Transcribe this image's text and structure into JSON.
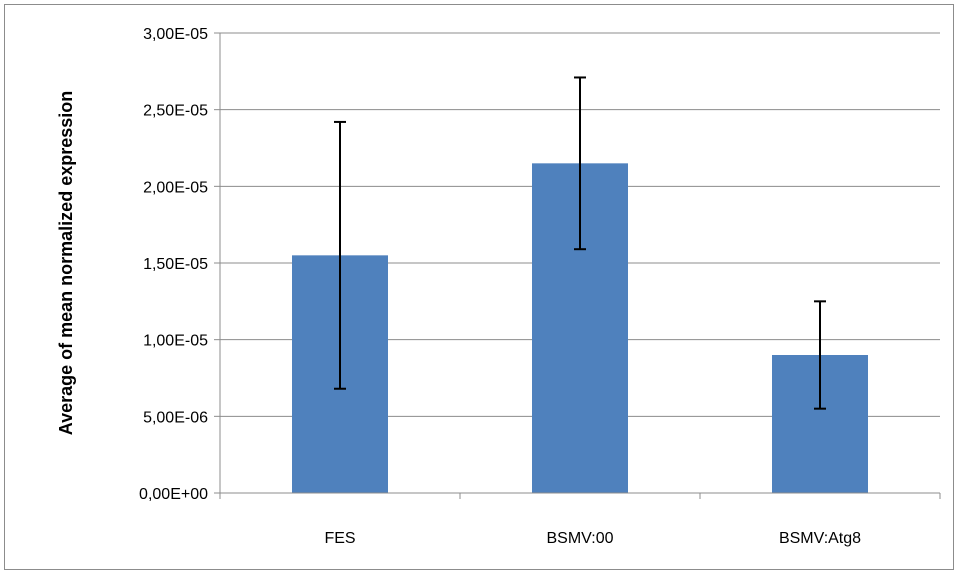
{
  "chart_data": {
    "type": "bar",
    "title": "",
    "xlabel": "",
    "ylabel": "Average of mean normalized expression",
    "categories": [
      "FES",
      "BSMV:00",
      "BSMV:Atg8"
    ],
    "values": [
      1.55e-05,
      2.15e-05,
      9e-06
    ],
    "error_bars": [
      {
        "low": 6.8e-06,
        "high": 2.42e-05
      },
      {
        "low": 1.59e-05,
        "high": 2.71e-05
      },
      {
        "low": 5.5e-06,
        "high": 1.25e-05
      }
    ],
    "ylim": [
      0,
      3e-05
    ],
    "yticks": [
      0,
      5e-06,
      1e-05,
      1.5e-05,
      2e-05,
      2.5e-05,
      3e-05
    ],
    "ytick_labels": [
      "0,00E+00",
      "5,00E-06",
      "1,00E-05",
      "1,50E-05",
      "2,00E-05",
      "2,50E-05",
      "3,00E-05"
    ],
    "grid": true,
    "legend": "none",
    "colors": {
      "bar": "#4f81bd",
      "grid": "#8c8c8c",
      "error": "#000000"
    }
  }
}
